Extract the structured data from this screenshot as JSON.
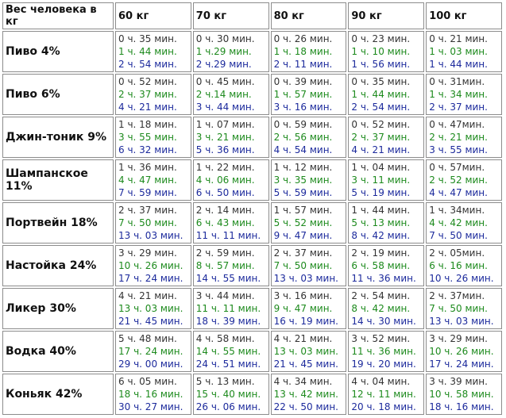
{
  "table": {
    "header": [
      "Вес человека в кг",
      "60 кг",
      "70 кг",
      "80 кг",
      "90 кг",
      "100 кг"
    ],
    "rows": [
      {
        "label": "Пиво 4%",
        "cells": [
          [
            "0 ч. 35 мин.",
            "1 ч. 44 мин.",
            "2 ч. 54 мин."
          ],
          [
            "0 ч. 30 мин.",
            "1 ч.29 мин.",
            "2 ч.29 мин."
          ],
          [
            "0 ч. 26 мин.",
            "1 ч. 18 мин.",
            "2 ч. 11 мин."
          ],
          [
            "0 ч. 23 мин.",
            "1 ч. 10 мин.",
            "1 ч. 56 мин."
          ],
          [
            "0 ч. 21 мин.",
            "1 ч. 03 мин.",
            "1 ч. 44 мин."
          ]
        ]
      },
      {
        "label": "Пиво 6%",
        "cells": [
          [
            "0 ч. 52 мин.",
            "2 ч. 37 мин.",
            "4 ч. 21 мин."
          ],
          [
            "0 ч. 45 мин.",
            "2 ч.14 мин.",
            "3 ч. 44 мин."
          ],
          [
            "0 ч. 39 мин.",
            "1 ч. 57 мин.",
            "3 ч. 16 мин."
          ],
          [
            "0 ч. 35 мин.",
            "1 ч. 44 мин.",
            "2 ч. 54 мин."
          ],
          [
            "0 ч. 31мин.",
            "1 ч. 34 мин.",
            "2 ч. 37 мин."
          ]
        ]
      },
      {
        "label": "Джин-тоник 9%",
        "cells": [
          [
            "1 ч. 18 мин.",
            "3 ч. 55 мин.",
            "6 ч. 32 мин."
          ],
          [
            "1 ч. 07 мин.",
            "3 ч. 21 мин.",
            "5 ч. 36 мин."
          ],
          [
            "0 ч. 59 мин.",
            "2 ч. 56 мин.",
            "4 ч. 54 мин."
          ],
          [
            "0 ч. 52 мин.",
            "2 ч. 37 мин.",
            "4 ч. 21 мин."
          ],
          [
            "0 ч. 47мин.",
            "2 ч. 21 мин.",
            "3 ч. 55 мин."
          ]
        ]
      },
      {
        "label": "Шампанское 11%",
        "cells": [
          [
            "1 ч. 36 мин.",
            "4 ч. 47 мин.",
            "7 ч. 59 мин."
          ],
          [
            "1 ч. 22 мин.",
            "4 ч. 06 мин.",
            "6 ч. 50 мин."
          ],
          [
            "1 ч. 12 мин.",
            "3 ч. 35 мин.",
            "5 ч. 59 мин."
          ],
          [
            "1 ч. 04 мин.",
            "3 ч. 11 мин.",
            "5 ч. 19 мин."
          ],
          [
            "0 ч. 57мин.",
            "2 ч. 52 мин.",
            "4 ч. 47 мин."
          ]
        ]
      },
      {
        "label": "Портвейн 18%",
        "cells": [
          [
            "2 ч. 37 мин.",
            "7 ч. 50 мин.",
            "13 ч. 03 мин."
          ],
          [
            "2 ч. 14 мин.",
            "6 ч. 43 мин.",
            "11 ч. 11 мин."
          ],
          [
            "1 ч. 57 мин.",
            "5 ч. 52 мин.",
            "9 ч. 47 мин."
          ],
          [
            "1 ч. 44 мин.",
            "5 ч. 13 мин.",
            "8 ч. 42 мин."
          ],
          [
            "1 ч. 34мин.",
            "4 ч. 42 мин.",
            "7 ч. 50 мин."
          ]
        ]
      },
      {
        "label": "Настойка 24%",
        "cells": [
          [
            "3 ч. 29 мин.",
            "10 ч. 26 мин.",
            "17 ч. 24 мин."
          ],
          [
            "2 ч. 59 мин.",
            "8 ч. 57 мин.",
            "14 ч. 55 мин."
          ],
          [
            "2 ч. 37 мин.",
            "7 ч. 50 мин.",
            "13 ч. 03 мин."
          ],
          [
            "2 ч. 19 мин.",
            "6 ч. 58 мин.",
            "11 ч. 36 мин."
          ],
          [
            "2 ч. 05мин.",
            "6 ч. 16 мин.",
            "10 ч. 26 мин."
          ]
        ]
      },
      {
        "label": "Ликер 30%",
        "cells": [
          [
            "4 ч. 21 мин.",
            "13 ч. 03 мин.",
            "21 ч. 45 мин."
          ],
          [
            "3 ч. 44 мин.",
            "11 ч. 11 мин.",
            "18 ч. 39 мин."
          ],
          [
            "3 ч. 16 мин.",
            "9 ч. 47 мин.",
            "16 ч. 19 мин."
          ],
          [
            "2 ч. 54 мин.",
            "8 ч. 42 мин.",
            "14 ч. 30 мин."
          ],
          [
            "2 ч. 37мин.",
            "7 ч. 50 мин.",
            "13 ч. 03 мин."
          ]
        ]
      },
      {
        "label": "Водка 40%",
        "cells": [
          [
            "5 ч. 48 мин.",
            "17 ч. 24 мин.",
            "29 ч. 00 мин."
          ],
          [
            "4 ч. 58 мин.",
            "14 ч. 55 мин.",
            "24 ч. 51 мин."
          ],
          [
            "4 ч. 21 мин.",
            "13 ч. 03 мин.",
            "21 ч. 45 мин."
          ],
          [
            "3 ч. 52 мин.",
            "11 ч. 36 мин.",
            "19 ч. 20 мин."
          ],
          [
            "3 ч. 29 мин.",
            "10 ч. 26 мин.",
            "17 ч. 24 мин."
          ]
        ]
      },
      {
        "label": "Коньяк 42%",
        "cells": [
          [
            "6 ч. 05 мин.",
            "18 ч. 16 мин.",
            "30 ч. 27 мин."
          ],
          [
            "5 ч. 13 мин.",
            "15 ч. 40 мин.",
            "26 ч. 06 мин."
          ],
          [
            "4 ч. 34 мин.",
            "13 ч. 42 мин.",
            "22 ч. 50 мин."
          ],
          [
            "4 ч. 04 мин.",
            "12 ч. 11 мин.",
            "20 ч. 18 мин."
          ],
          [
            "3 ч. 39 мин.",
            "10 ч. 58 мин.",
            "18 ч. 16 мин."
          ]
        ]
      }
    ]
  }
}
